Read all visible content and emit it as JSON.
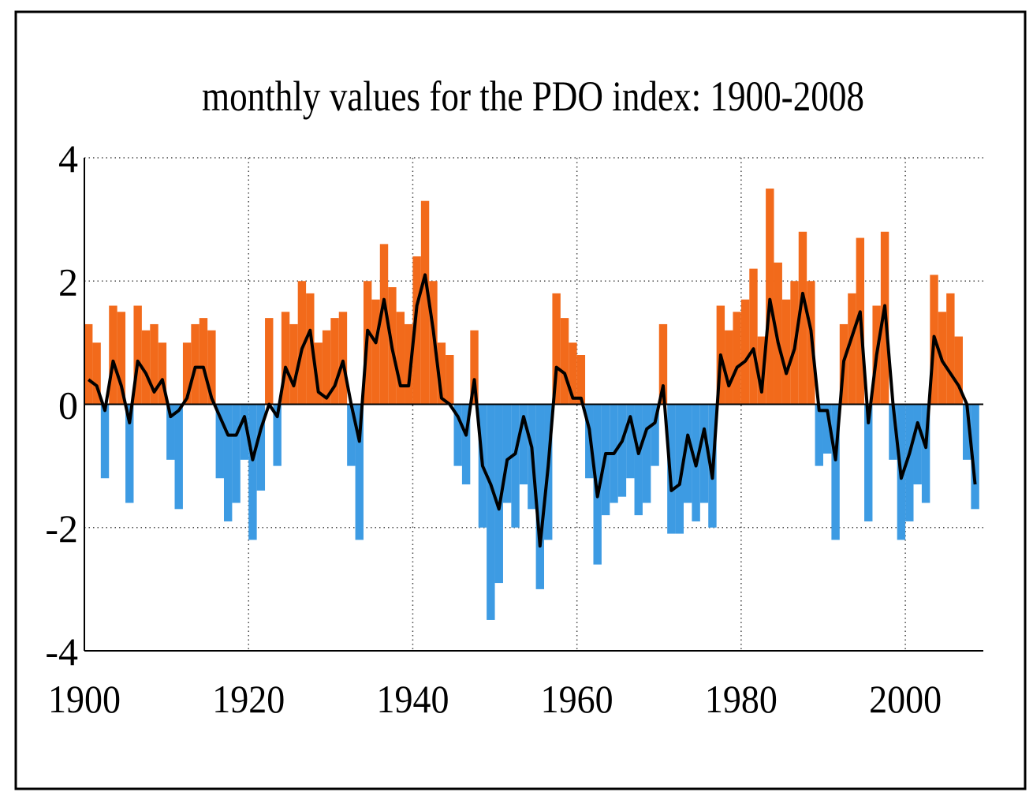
{
  "chart_data": {
    "type": "bar-line",
    "title": "monthly values for the PDO index: 1900-2008",
    "x": [
      1900,
      1901,
      1902,
      1903,
      1904,
      1905,
      1906,
      1907,
      1908,
      1909,
      1910,
      1911,
      1912,
      1913,
      1914,
      1915,
      1916,
      1917,
      1918,
      1919,
      1920,
      1921,
      1922,
      1923,
      1924,
      1925,
      1926,
      1927,
      1928,
      1929,
      1930,
      1931,
      1932,
      1933,
      1934,
      1935,
      1936,
      1937,
      1938,
      1939,
      1940,
      1941,
      1942,
      1943,
      1944,
      1945,
      1946,
      1947,
      1948,
      1949,
      1950,
      1951,
      1952,
      1953,
      1954,
      1955,
      1956,
      1957,
      1958,
      1959,
      1960,
      1961,
      1962,
      1963,
      1964,
      1965,
      1966,
      1967,
      1968,
      1969,
      1970,
      1971,
      1972,
      1973,
      1974,
      1975,
      1976,
      1977,
      1978,
      1979,
      1980,
      1981,
      1982,
      1983,
      1984,
      1985,
      1986,
      1987,
      1988,
      1989,
      1990,
      1991,
      1992,
      1993,
      1994,
      1995,
      1996,
      1997,
      1998,
      1999,
      2000,
      2001,
      2002,
      2003,
      2004,
      2005,
      2006,
      2007,
      2008
    ],
    "series": [
      {
        "kind": "bar",
        "positive_color": "#f26a1b",
        "negative_color": "#3d9be3",
        "values": [
          1.3,
          1.0,
          -1.2,
          1.6,
          1.5,
          -1.6,
          1.6,
          1.2,
          1.3,
          1.0,
          -0.9,
          -1.7,
          1.0,
          1.3,
          1.4,
          1.2,
          -1.2,
          -1.9,
          -1.6,
          -0.9,
          -2.2,
          -1.4,
          1.4,
          -1.0,
          1.5,
          1.3,
          2.0,
          1.8,
          1.0,
          1.2,
          1.4,
          1.5,
          -1.0,
          -2.2,
          2.0,
          1.7,
          2.6,
          1.9,
          1.5,
          1.3,
          2.4,
          3.3,
          2.0,
          1.0,
          0.8,
          -1.0,
          -1.3,
          1.2,
          -2.0,
          -3.5,
          -2.9,
          -1.6,
          -2.0,
          -1.3,
          -1.7,
          -3.0,
          -2.2,
          1.8,
          1.4,
          1.0,
          0.8,
          -1.2,
          -2.6,
          -1.8,
          -1.6,
          -1.5,
          -1.2,
          -1.8,
          -1.6,
          -1.0,
          1.3,
          -2.1,
          -2.1,
          -1.6,
          -1.9,
          -1.6,
          -2.0,
          1.6,
          1.2,
          1.5,
          1.7,
          2.2,
          1.1,
          3.5,
          2.3,
          1.7,
          2.0,
          2.8,
          2.0,
          -1.0,
          -0.8,
          -2.2,
          1.3,
          1.8,
          2.7,
          -1.9,
          1.6,
          2.8,
          -0.9,
          -2.2,
          -1.9,
          -1.3,
          -1.6,
          2.1,
          1.5,
          1.8,
          1.1,
          -0.9,
          -1.7
        ]
      },
      {
        "kind": "line",
        "color": "#000000",
        "values": [
          0.4,
          0.3,
          -0.1,
          0.7,
          0.3,
          -0.3,
          0.7,
          0.5,
          0.2,
          0.4,
          -0.2,
          -0.1,
          0.1,
          0.6,
          0.6,
          0.1,
          -0.2,
          -0.5,
          -0.5,
          -0.2,
          -0.9,
          -0.4,
          0.0,
          -0.2,
          0.6,
          0.3,
          0.9,
          1.2,
          0.2,
          0.1,
          0.3,
          0.7,
          0.0,
          -0.6,
          1.2,
          1.0,
          1.7,
          0.9,
          0.3,
          0.3,
          1.6,
          2.1,
          1.2,
          0.1,
          0.0,
          -0.2,
          -0.5,
          0.4,
          -1.0,
          -1.3,
          -1.7,
          -0.9,
          -0.8,
          -0.2,
          -0.7,
          -2.3,
          -1.0,
          0.6,
          0.5,
          0.1,
          0.1,
          -0.4,
          -1.5,
          -0.8,
          -0.8,
          -0.6,
          -0.2,
          -0.8,
          -0.4,
          -0.3,
          0.3,
          -1.4,
          -1.3,
          -0.5,
          -1.0,
          -0.4,
          -1.2,
          0.8,
          0.3,
          0.6,
          0.7,
          0.9,
          0.2,
          1.7,
          1.0,
          0.5,
          0.9,
          1.8,
          1.2,
          -0.1,
          -0.1,
          -0.9,
          0.7,
          1.1,
          1.5,
          -0.3,
          0.8,
          1.6,
          0.0,
          -1.2,
          -0.8,
          -0.3,
          -0.7,
          1.1,
          0.7,
          0.5,
          0.3,
          0.0,
          -1.3
        ]
      }
    ],
    "xlim": [
      1900,
      2009.5
    ],
    "xticks": [
      1900,
      1920,
      1940,
      1960,
      1980,
      2000
    ],
    "ylim": [
      -4,
      4
    ],
    "yticks": [
      -4,
      -2,
      0,
      2,
      4
    ],
    "grid": true
  }
}
